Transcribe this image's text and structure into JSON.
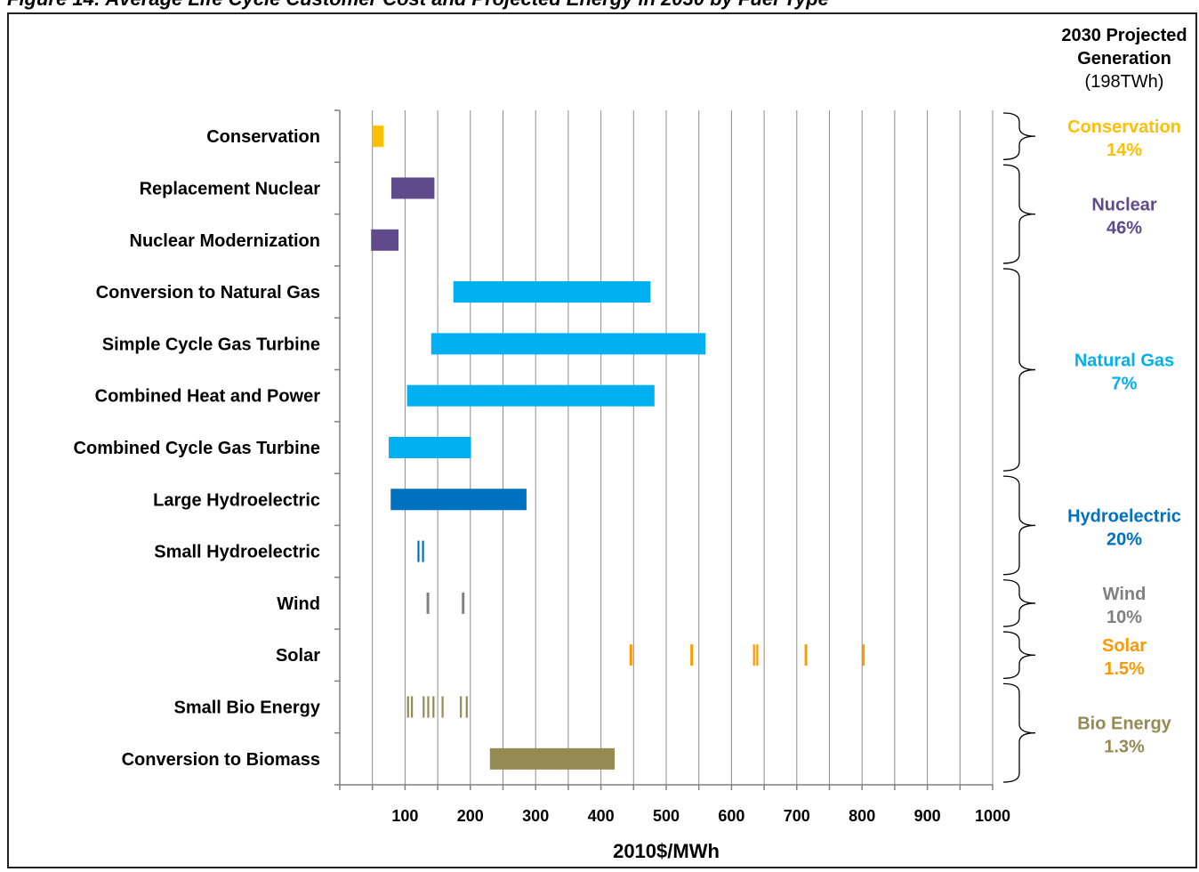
{
  "figure": {
    "title": "Figure 14: Average Life Cycle Customer Cost and Projected Energy in 2030 by Fuel Type"
  },
  "chart_data": {
    "type": "bar",
    "orientation": "horizontal-range",
    "xlabel": "2010$/MWh",
    "xlim": [
      0,
      1000
    ],
    "xticks": [
      "100",
      "200",
      "300",
      "400",
      "500",
      "600",
      "700",
      "800",
      "900",
      "1000"
    ],
    "grid": true,
    "categories": [
      {
        "label": "Conservation",
        "color": "#FFC000",
        "ranges": [
          [
            50,
            67
          ]
        ]
      },
      {
        "label": "Replacement Nuclear",
        "color": "#5F4B8B",
        "ranges": [
          [
            79,
            145
          ]
        ]
      },
      {
        "label": "Nuclear Modernization",
        "color": "#5F4B8B",
        "ranges": [
          [
            48,
            90
          ]
        ]
      },
      {
        "label": "Conversion to Natural Gas",
        "color": "#00B0F0",
        "ranges": [
          [
            174,
            476
          ]
        ]
      },
      {
        "label": "Simple Cycle Gas Turbine",
        "color": "#00B0F0",
        "ranges": [
          [
            140,
            560
          ]
        ]
      },
      {
        "label": "Combined Heat and Power",
        "color": "#00B0F0",
        "ranges": [
          [
            103,
            482
          ]
        ]
      },
      {
        "label": "Combined Cycle Gas Turbine",
        "color": "#00B0F0",
        "ranges": [
          [
            75,
            201
          ]
        ]
      },
      {
        "label": "Large Hydroelectric",
        "color": "#0070C0",
        "ranges": [
          [
            78,
            286
          ]
        ]
      },
      {
        "label": "Small Hydroelectric",
        "color": "#0070C0",
        "ranges": [
          [
            119,
            122
          ],
          [
            126,
            129
          ]
        ]
      },
      {
        "label": "Wind",
        "color": "#808080",
        "ranges": [
          [
            133,
            137
          ],
          [
            187,
            191
          ]
        ]
      },
      {
        "label": "Solar",
        "color": "#FF9900",
        "ranges": [
          [
            444,
            448
          ],
          [
            537,
            541
          ],
          [
            633,
            636
          ],
          [
            638,
            641
          ],
          [
            712,
            716
          ],
          [
            800,
            804
          ]
        ]
      },
      {
        "label": "Small Bio Energy",
        "color": "#948A54",
        "ranges": [
          [
            103,
            106
          ],
          [
            109,
            112
          ],
          [
            127,
            130
          ],
          [
            134,
            137
          ],
          [
            142,
            145
          ],
          [
            156,
            159
          ],
          [
            184,
            187
          ],
          [
            193,
            196
          ]
        ]
      },
      {
        "label": "Conversion to Biomass",
        "color": "#948A54",
        "ranges": [
          [
            230,
            421
          ]
        ]
      }
    ]
  },
  "generation_panel": {
    "header_line1": "2030 Projected",
    "header_line2": "Generation",
    "header_line3": "(198TWh)",
    "groups": [
      {
        "name": "Conservation",
        "percent": "14%",
        "color": "#FFC000",
        "first_row": 0,
        "last_row": 0
      },
      {
        "name": "Nuclear",
        "percent": "46%",
        "color": "#5F4B8B",
        "first_row": 1,
        "last_row": 2
      },
      {
        "name": "Natural Gas",
        "percent": "7%",
        "color": "#00B0F0",
        "first_row": 3,
        "last_row": 6
      },
      {
        "name": "Hydroelectric",
        "percent": "20%",
        "color": "#0070C0",
        "first_row": 7,
        "last_row": 8
      },
      {
        "name": "Wind",
        "percent": "10%",
        "color": "#808080",
        "first_row": 9,
        "last_row": 9
      },
      {
        "name": "Solar",
        "percent": "1.5%",
        "color": "#FF9900",
        "first_row": 10,
        "last_row": 10
      },
      {
        "name": "Bio Energy",
        "percent": "1.3%",
        "color": "#948A54",
        "first_row": 11,
        "last_row": 12
      }
    ]
  }
}
